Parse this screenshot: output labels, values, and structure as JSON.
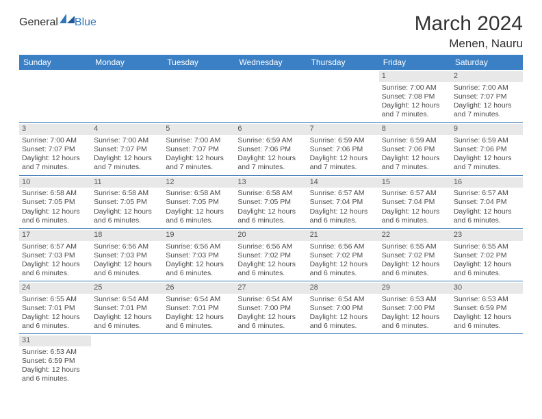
{
  "logo": {
    "part1": "General",
    "part2": "Blue"
  },
  "title": "March 2024",
  "location": "Menen, Nauru",
  "colors": {
    "header_bg": "#3b7fc4",
    "header_text": "#ffffff",
    "daybar_bg": "#e8e8e8",
    "row_border": "#2f6faf",
    "text": "#4a4a4a",
    "logo_gray": "#5a5a5a",
    "logo_blue": "#2f77bb"
  },
  "weekdays": [
    "Sunday",
    "Monday",
    "Tuesday",
    "Wednesday",
    "Thursday",
    "Friday",
    "Saturday"
  ],
  "weeks": [
    [
      null,
      null,
      null,
      null,
      null,
      {
        "n": "1",
        "sunrise": "7:00 AM",
        "sunset": "7:08 PM",
        "daylight": "12 hours and 7 minutes."
      },
      {
        "n": "2",
        "sunrise": "7:00 AM",
        "sunset": "7:07 PM",
        "daylight": "12 hours and 7 minutes."
      }
    ],
    [
      {
        "n": "3",
        "sunrise": "7:00 AM",
        "sunset": "7:07 PM",
        "daylight": "12 hours and 7 minutes."
      },
      {
        "n": "4",
        "sunrise": "7:00 AM",
        "sunset": "7:07 PM",
        "daylight": "12 hours and 7 minutes."
      },
      {
        "n": "5",
        "sunrise": "7:00 AM",
        "sunset": "7:07 PM",
        "daylight": "12 hours and 7 minutes."
      },
      {
        "n": "6",
        "sunrise": "6:59 AM",
        "sunset": "7:06 PM",
        "daylight": "12 hours and 7 minutes."
      },
      {
        "n": "7",
        "sunrise": "6:59 AM",
        "sunset": "7:06 PM",
        "daylight": "12 hours and 7 minutes."
      },
      {
        "n": "8",
        "sunrise": "6:59 AM",
        "sunset": "7:06 PM",
        "daylight": "12 hours and 7 minutes."
      },
      {
        "n": "9",
        "sunrise": "6:59 AM",
        "sunset": "7:06 PM",
        "daylight": "12 hours and 7 minutes."
      }
    ],
    [
      {
        "n": "10",
        "sunrise": "6:58 AM",
        "sunset": "7:05 PM",
        "daylight": "12 hours and 6 minutes."
      },
      {
        "n": "11",
        "sunrise": "6:58 AM",
        "sunset": "7:05 PM",
        "daylight": "12 hours and 6 minutes."
      },
      {
        "n": "12",
        "sunrise": "6:58 AM",
        "sunset": "7:05 PM",
        "daylight": "12 hours and 6 minutes."
      },
      {
        "n": "13",
        "sunrise": "6:58 AM",
        "sunset": "7:05 PM",
        "daylight": "12 hours and 6 minutes."
      },
      {
        "n": "14",
        "sunrise": "6:57 AM",
        "sunset": "7:04 PM",
        "daylight": "12 hours and 6 minutes."
      },
      {
        "n": "15",
        "sunrise": "6:57 AM",
        "sunset": "7:04 PM",
        "daylight": "12 hours and 6 minutes."
      },
      {
        "n": "16",
        "sunrise": "6:57 AM",
        "sunset": "7:04 PM",
        "daylight": "12 hours and 6 minutes."
      }
    ],
    [
      {
        "n": "17",
        "sunrise": "6:57 AM",
        "sunset": "7:03 PM",
        "daylight": "12 hours and 6 minutes."
      },
      {
        "n": "18",
        "sunrise": "6:56 AM",
        "sunset": "7:03 PM",
        "daylight": "12 hours and 6 minutes."
      },
      {
        "n": "19",
        "sunrise": "6:56 AM",
        "sunset": "7:03 PM",
        "daylight": "12 hours and 6 minutes."
      },
      {
        "n": "20",
        "sunrise": "6:56 AM",
        "sunset": "7:02 PM",
        "daylight": "12 hours and 6 minutes."
      },
      {
        "n": "21",
        "sunrise": "6:56 AM",
        "sunset": "7:02 PM",
        "daylight": "12 hours and 6 minutes."
      },
      {
        "n": "22",
        "sunrise": "6:55 AM",
        "sunset": "7:02 PM",
        "daylight": "12 hours and 6 minutes."
      },
      {
        "n": "23",
        "sunrise": "6:55 AM",
        "sunset": "7:02 PM",
        "daylight": "12 hours and 6 minutes."
      }
    ],
    [
      {
        "n": "24",
        "sunrise": "6:55 AM",
        "sunset": "7:01 PM",
        "daylight": "12 hours and 6 minutes."
      },
      {
        "n": "25",
        "sunrise": "6:54 AM",
        "sunset": "7:01 PM",
        "daylight": "12 hours and 6 minutes."
      },
      {
        "n": "26",
        "sunrise": "6:54 AM",
        "sunset": "7:01 PM",
        "daylight": "12 hours and 6 minutes."
      },
      {
        "n": "27",
        "sunrise": "6:54 AM",
        "sunset": "7:00 PM",
        "daylight": "12 hours and 6 minutes."
      },
      {
        "n": "28",
        "sunrise": "6:54 AM",
        "sunset": "7:00 PM",
        "daylight": "12 hours and 6 minutes."
      },
      {
        "n": "29",
        "sunrise": "6:53 AM",
        "sunset": "7:00 PM",
        "daylight": "12 hours and 6 minutes."
      },
      {
        "n": "30",
        "sunrise": "6:53 AM",
        "sunset": "6:59 PM",
        "daylight": "12 hours and 6 minutes."
      }
    ],
    [
      {
        "n": "31",
        "sunrise": "6:53 AM",
        "sunset": "6:59 PM",
        "daylight": "12 hours and 6 minutes."
      },
      null,
      null,
      null,
      null,
      null,
      null
    ]
  ],
  "labels": {
    "sunrise": "Sunrise: ",
    "sunset": "Sunset: ",
    "daylight": "Daylight: "
  }
}
